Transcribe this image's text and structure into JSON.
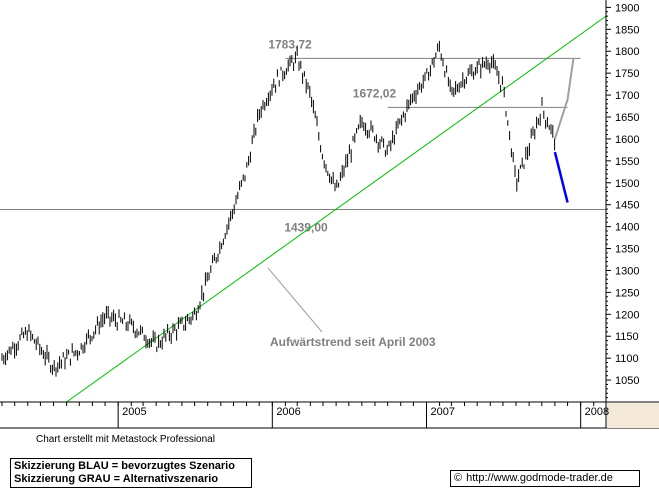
{
  "chart_data": {
    "type": "candlestick",
    "y_axis": {
      "min": 1000,
      "max": 1910,
      "position": "right",
      "ticks": [
        "1050",
        "1100",
        "1150",
        "1200",
        "1250",
        "1300",
        "1350",
        "1400",
        "1450",
        "1500",
        "1550",
        "1600",
        "1650",
        "1700",
        "1750",
        "1800",
        "1850",
        "1900"
      ]
    },
    "x_axis": {
      "start": "2004-04",
      "end": "2008-03",
      "ticks": [
        {
          "label": "2005",
          "date": "2005-01"
        },
        {
          "label": "2006",
          "date": "2006-01"
        },
        {
          "label": "2007",
          "date": "2007-01"
        },
        {
          "label": "2008",
          "date": "2008-01"
        }
      ]
    },
    "price_path": [
      {
        "date": "2004-04",
        "value": 1100
      },
      {
        "date": "2004-06",
        "value": 1160
      },
      {
        "date": "2004-08",
        "value": 1080
      },
      {
        "date": "2004-10",
        "value": 1120
      },
      {
        "date": "2004-12",
        "value": 1195
      },
      {
        "date": "2005-02",
        "value": 1175
      },
      {
        "date": "2005-04",
        "value": 1130
      },
      {
        "date": "2005-05",
        "value": 1155
      },
      {
        "date": "2005-06",
        "value": 1175
      },
      {
        "date": "2005-07",
        "value": 1200
      },
      {
        "date": "2005-08",
        "value": 1280
      },
      {
        "date": "2005-09",
        "value": 1360
      },
      {
        "date": "2005-10",
        "value": 1440
      },
      {
        "date": "2005-11",
        "value": 1530
      },
      {
        "date": "2005-12",
        "value": 1660
      },
      {
        "date": "2006-01",
        "value": 1720
      },
      {
        "date": "2006-02",
        "value": 1760
      },
      {
        "date": "2006-03",
        "value": 1783.72
      },
      {
        "date": "2006-04",
        "value": 1700
      },
      {
        "date": "2006-05",
        "value": 1560
      },
      {
        "date": "2006-06",
        "value": 1480
      },
      {
        "date": "2006-07",
        "value": 1560
      },
      {
        "date": "2006-08",
        "value": 1640
      },
      {
        "date": "2006-09",
        "value": 1610
      },
      {
        "date": "2006-10",
        "value": 1570
      },
      {
        "date": "2006-11",
        "value": 1640
      },
      {
        "date": "2006-12",
        "value": 1700
      },
      {
        "date": "2007-01",
        "value": 1740
      },
      {
        "date": "2007-02",
        "value": 1810
      },
      {
        "date": "2007-03",
        "value": 1700
      },
      {
        "date": "2007-04",
        "value": 1740
      },
      {
        "date": "2007-05",
        "value": 1760
      },
      {
        "date": "2007-06",
        "value": 1780
      },
      {
        "date": "2007-07",
        "value": 1720
      },
      {
        "date": "2007-08",
        "value": 1500
      },
      {
        "date": "2007-09",
        "value": 1580
      },
      {
        "date": "2007-10",
        "value": 1670
      },
      {
        "date": "2007-11",
        "value": 1600
      }
    ],
    "levels": [
      {
        "label": "1783,72",
        "value": 1783.72
      },
      {
        "label": "1672,02",
        "value": 1672.02
      },
      {
        "label": "1439,00",
        "value": 1439
      }
    ],
    "trendline": {
      "label": "Aufwärtstrend seit April 2003",
      "points": [
        {
          "date": "2004-09",
          "value": 1000
        },
        {
          "date": "2008-03",
          "value": 1880
        }
      ],
      "color": "#00c000"
    },
    "scenario_blue": {
      "color": "#0000ff",
      "points": [
        {
          "date": "2007-11",
          "value": 1570
        },
        {
          "date": "2007-12",
          "value": 1455
        }
      ]
    },
    "scenario_gray": {
      "color": "#a0a0a0",
      "points": [
        {
          "date": "2007-11",
          "value": 1600
        },
        {
          "date": "2007-12",
          "value": 1690
        },
        {
          "date": "2007-12",
          "value": 1785
        }
      ]
    }
  },
  "footer": {
    "credit": "Chart erstellt mit Metastock Professional",
    "legend_blue": "Skizzierung BLAU = bevorzugtes Szenario",
    "legend_grey": "Skizzierung GRAU = Alternativszenario",
    "copyright_symbol": "©",
    "url": "http://www.godmode-trader.de"
  }
}
